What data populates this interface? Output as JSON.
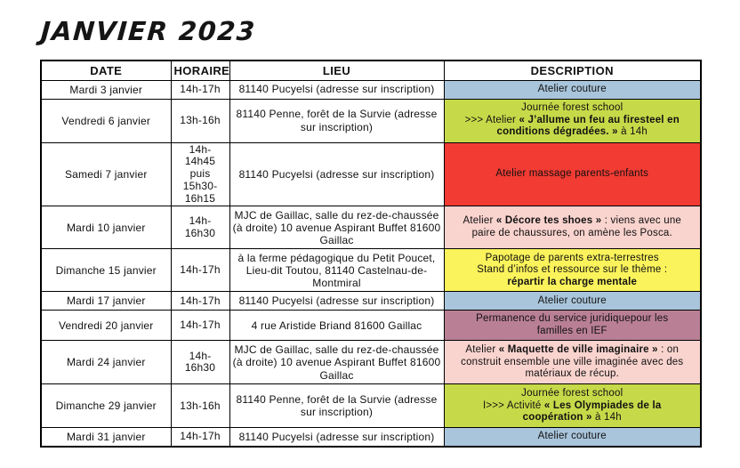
{
  "title": "JANVIER 2023",
  "colors": {
    "blue": "#a9c5db",
    "green": "#c6da49",
    "red": "#f13b33",
    "pink": "#f9d3ce",
    "yellow": "#fbf35b",
    "mauve": "#b97f95"
  },
  "table": {
    "headers": [
      "DATE",
      "HORAIRE",
      "LIEU",
      "DESCRIPTION"
    ],
    "rows": [
      {
        "date": "Mardi 3 janvier",
        "horaire": "14h-17h",
        "lieu": "81140 Pucyelsi (adresse sur inscription)",
        "color": "blue",
        "description": [
          [
            {
              "text": "Atelier couture",
              "bold": false
            }
          ]
        ]
      },
      {
        "date": "Vendredi 6 janvier",
        "horaire": "13h-16h",
        "lieu": "81140 Penne, forêt de la Survie (adresse sur inscription)",
        "color": "green",
        "description": [
          [
            {
              "text": "Journée forest school",
              "bold": false
            }
          ],
          [
            {
              "text": ">>> Atelier ",
              "bold": false
            },
            {
              "text": "« J’allume un feu au firesteel en",
              "bold": true
            }
          ],
          [
            {
              "text": "conditions dégradées. »",
              "bold": true
            },
            {
              "text": " à 14h",
              "bold": false
            }
          ]
        ]
      },
      {
        "date": "Samedi 7 janvier",
        "horaire": "14h-14h45 puis 15h30-16h15",
        "lieu": "81140 Pucyelsi (adresse sur inscription)",
        "color": "red",
        "description": [
          [
            {
              "text": "Atelier massage parents-enfants",
              "bold": false
            }
          ]
        ]
      },
      {
        "date": "Mardi 10 janvier",
        "horaire": "14h-16h30",
        "lieu": "MJC de Gaillac, salle du rez-de-chaussée (à droite) 10 avenue Aspirant Buffet 81600 Gaillac",
        "color": "pink",
        "description": [
          [
            {
              "text": "Atelier ",
              "bold": false
            },
            {
              "text": "« Décore tes shoes »",
              "bold": true
            },
            {
              "text": " : viens avec une",
              "bold": false
            }
          ],
          [
            {
              "text": "paire de chaussures, on amène les Posca.",
              "bold": false
            }
          ]
        ]
      },
      {
        "date": "Dimanche 15 janvier",
        "horaire": "14h-17h",
        "lieu": "à la ferme pédagogique du Petit Poucet, Lieu-dit Toutou, 81140 Castelnau-de-Montmiral",
        "color": "yellow",
        "description": [
          [
            {
              "text": "Papotage de parents extra-terrestres",
              "bold": false
            }
          ],
          [
            {
              "text": "Stand d’infos et ressource sur le thème :",
              "bold": false
            }
          ],
          [
            {
              "text": "répartir la charge mentale",
              "bold": true
            }
          ]
        ]
      },
      {
        "date": "Mardi 17 janvier",
        "horaire": "14h-17h",
        "lieu": "81140 Pucyelsi (adresse sur inscription)",
        "color": "blue",
        "description": [
          [
            {
              "text": "Atelier couture",
              "bold": false
            }
          ]
        ]
      },
      {
        "date": "Vendredi 20 janvier",
        "horaire": "14h-17h",
        "lieu": "4 rue Aristide Briand 81600 Gaillac",
        "color": "mauve",
        "description": [
          [
            {
              "text": "Permanence du service juridiquepour les",
              "bold": false
            }
          ],
          [
            {
              "text": "familles en IEF",
              "bold": false
            }
          ]
        ]
      },
      {
        "date": "Mardi 24 janvier",
        "horaire": "14h-16h30",
        "lieu": "MJC de Gaillac, salle du rez-de-chaussée (à droite) 10 avenue Aspirant Buffet 81600 Gaillac",
        "color": "pink",
        "description": [
          [
            {
              "text": "Atelier ",
              "bold": false
            },
            {
              "text": "« Maquette de ville imaginaire »",
              "bold": true
            },
            {
              "text": " : on",
              "bold": false
            }
          ],
          [
            {
              "text": "construit ensemble une ville imaginée avec des",
              "bold": false
            }
          ],
          [
            {
              "text": "matériaux de récup.",
              "bold": false
            }
          ]
        ]
      },
      {
        "date": "Dimanche 29 janvier",
        "horaire": "13h-16h",
        "lieu": "81140 Penne, forêt de la Survie (adresse sur inscription)",
        "color": "green",
        "description": [
          [
            {
              "text": "Journée forest school",
              "bold": false
            }
          ],
          [
            {
              "text": "I>>> Activité ",
              "bold": false
            },
            {
              "text": "« Les Olympiades de la",
              "bold": true
            }
          ],
          [
            {
              "text": "coopération »",
              "bold": true
            },
            {
              "text": " à 14h",
              "bold": false
            }
          ]
        ]
      },
      {
        "date": "Mardi 31 janvier",
        "horaire": "14h-17h",
        "lieu": "81140 Pucyelsi (adresse sur inscription)",
        "color": "blue",
        "description": [
          [
            {
              "text": "Atelier couture",
              "bold": false
            }
          ]
        ]
      }
    ]
  }
}
